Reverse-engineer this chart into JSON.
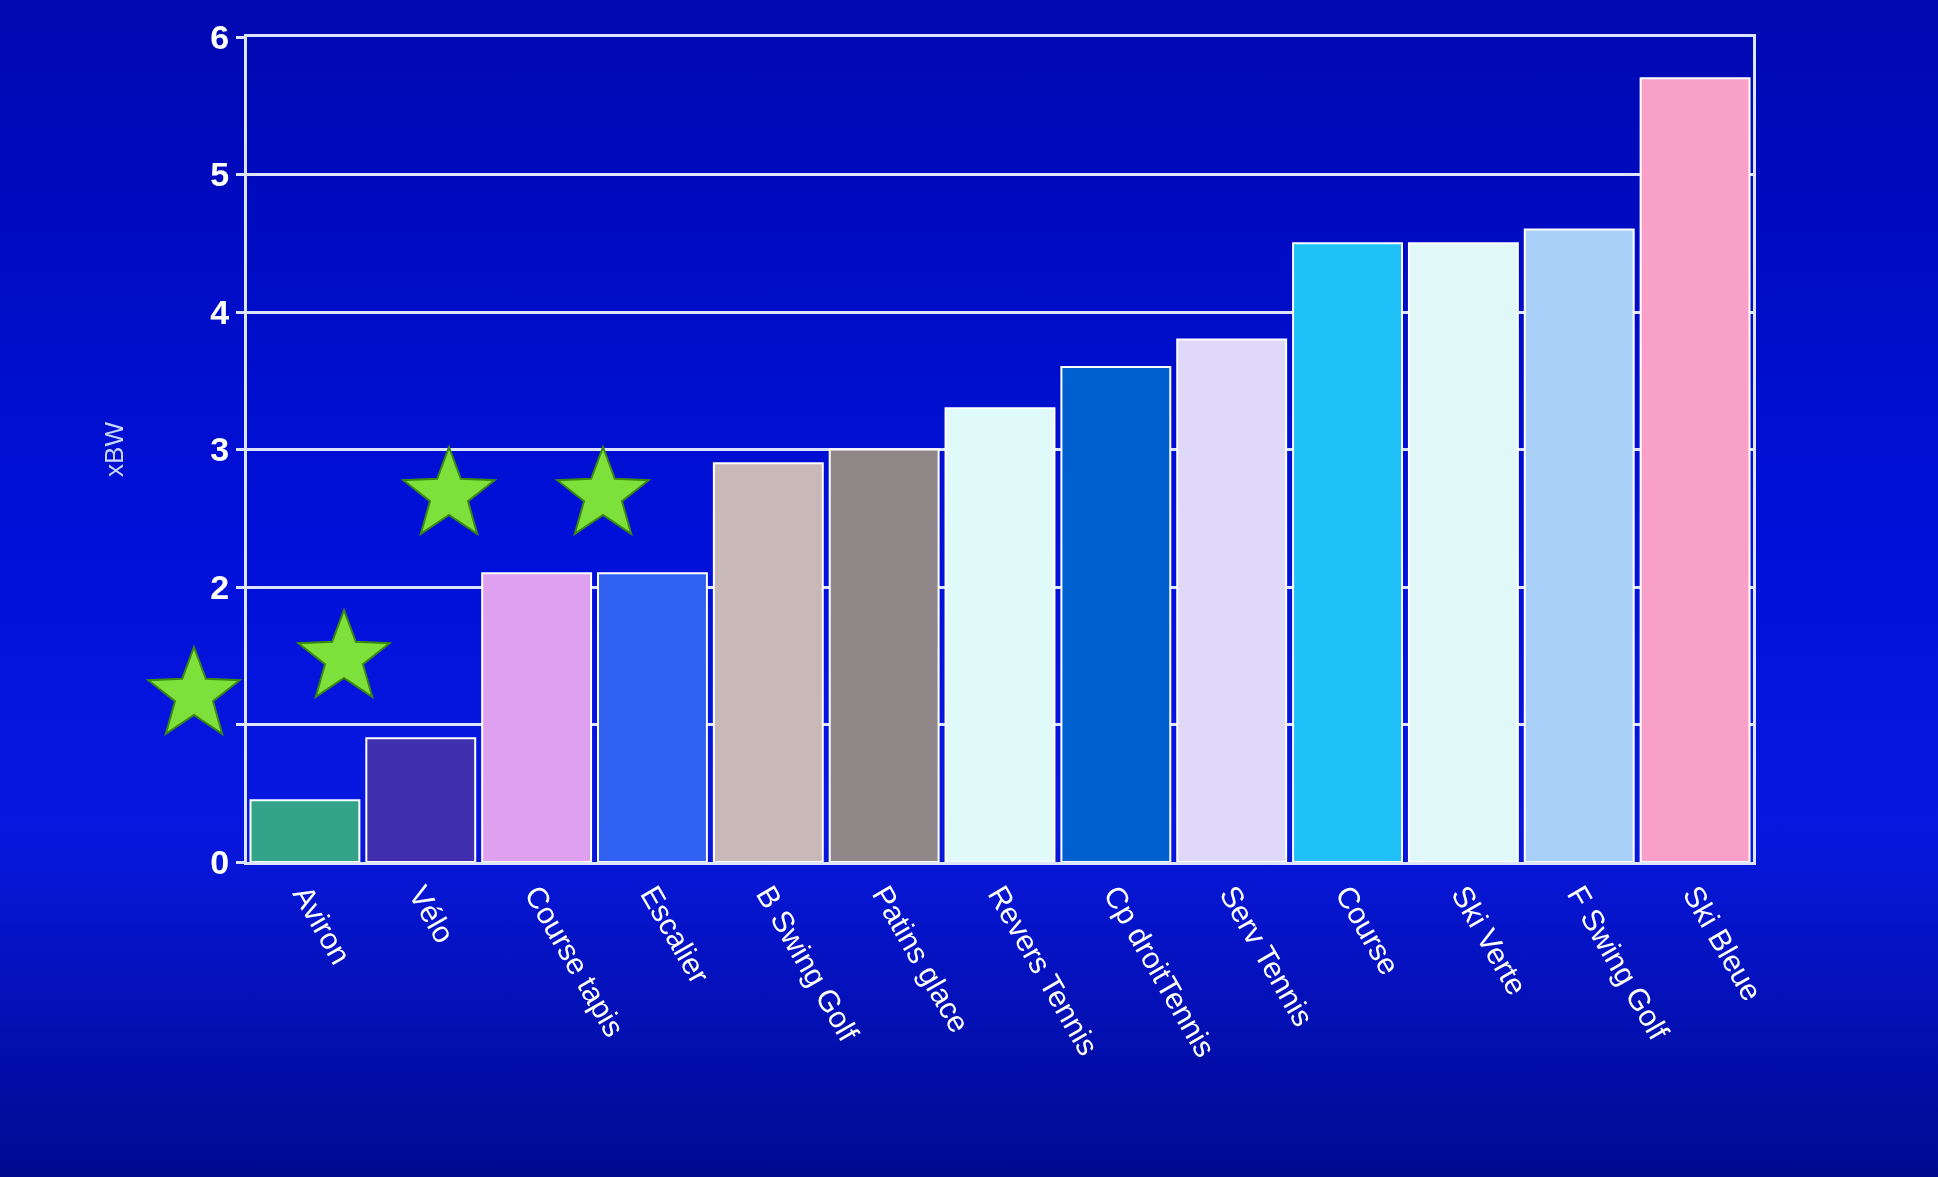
{
  "chart_data": {
    "type": "bar",
    "ylabel": "xBW",
    "categories": [
      "Aviron",
      "Vélo",
      "Course tapis",
      "Escalier",
      "B Swing Golf",
      "Patins glace",
      "Revers Tennis",
      "Cp droitTennis",
      "Serv Tennis",
      "Course",
      "Ski Verte",
      "F Swing Golf",
      "Ski Bleue"
    ],
    "values": [
      0.45,
      0.9,
      2.1,
      2.1,
      2.9,
      3.0,
      3.3,
      3.6,
      3.8,
      4.5,
      4.5,
      4.6,
      5.7
    ],
    "colors": [
      "#33a38a",
      "#4030b0",
      "#e0a0f0",
      "#3060f0",
      "#c8b8b8",
      "#908888",
      "#e0fafa",
      "#0060d0",
      "#e0d8f8",
      "#20c0f8",
      "#e0f8f8",
      "#a8d0f8",
      "#f8a0c8"
    ],
    "ylim": [
      0,
      6
    ],
    "yticks": [
      0,
      {
        "value": 1,
        "label": null
      },
      2,
      3,
      4,
      5,
      6
    ],
    "grid": "y"
  }
}
